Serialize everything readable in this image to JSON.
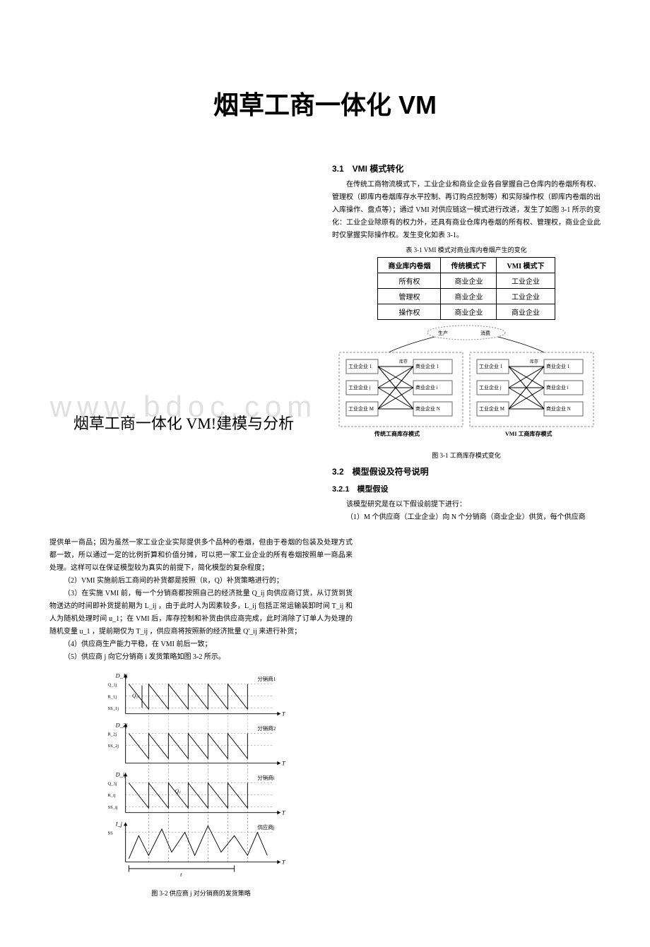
{
  "title_main": "烟草工商一体化 VM",
  "subtitle": "烟草工商一体化 VM!建模与分析",
  "watermark": "www.bdoc.com",
  "watermark_color": "#e0e0e0",
  "colors": {
    "text": "#000000",
    "bg": "#ffffff",
    "border": "#000000",
    "grid": "#444444"
  },
  "section_3_1": {
    "heading": "3.1　VMI 模式转化",
    "para": "在传统工商物流模式下，工业企业和商业企业各自掌握自己仓库内的卷烟所有权、管理权（即库内卷烟库存水平控制、再订购点控制等）和实际操作权（即库内卷烟的出入库操作、盘点等）；通过 VMI 对供应链这一模式进行改进，发生了如图 3-1 所示的变化：工业企业除原有的权力外，还具有商业仓库内卷烟的所有权、管理权，商业企业此时仅掌握实际操作权。发生变化如表 3-1。",
    "table_caption": "表 3-1 VMI 模式对商业库内卷烟产生的变化",
    "table": {
      "columns": [
        "商业库内卷烟",
        "传统模式下",
        "VMI 模式下"
      ],
      "rows": [
        [
          "所有权",
          "商业企业",
          "工业企业"
        ],
        [
          "管理权",
          "商业企业",
          "工业企业"
        ],
        [
          "操作权",
          "商业企业",
          "商业企业"
        ]
      ]
    },
    "fig_caption": "图 3-1 工商库存模式变化",
    "diagram": {
      "left_label": "传统工商库存模式",
      "right_label": "VMI 工商库存模式",
      "top_labels": [
        "生产",
        "消费"
      ],
      "nodes_left": [
        "工业企业 1",
        "工业企业 j",
        "工业企业 M",
        "商业企业 1",
        "商业企业 i",
        "商业企业 N"
      ],
      "nodes_right": [
        "工业企业 1",
        "工业企业 j",
        "工业企业 M",
        "商业企业 1",
        "商业企业 i",
        "商业企业 N"
      ],
      "node_tags": [
        "库存",
        "库存"
      ],
      "box_color": "#888888"
    }
  },
  "section_3_2": {
    "heading": "3.2　模型假设及符号说明",
    "sub_heading": "3.2.1　模型假设",
    "intro": "该模型研究是在以下假设前提下进行：",
    "assumption_1": "（1）M 个供应商（工业企业）向 N 个分销商（商业企业）供货，每个供应商",
    "continuation": [
      "提供单一商品；因为虽然一家工业企业实际提供多个品种的卷烟，但由于卷烟的包装及处理方式都一致，所以通过一定的比例折算和价值分摊，可以把一家工业企业的所有卷烟按照单一商品来处理。这样可以在保证模型较为真实的前提下，简化模型的复杂程度；",
      "（2）VMI 实施前后工商间的补货都是按照（R，Q）补货策略进行的；",
      "（3）在实施 VMI 前，每一个分销商都按照自己的经济批量 Q_ij 向供应商订货，从订货到货物送达的时间即补货提前期为 L_ij ，由于此时人为因素较多，L_ij 包括正常运输装卸时间 T_ij 和人为随机处理时间 u_1；在 VMI 后，库存控制和补货由供应商完成，此时消除了订单人为处理的随机变量 u_1 ，提前期仅为 T_ij ，供应商将按照新的经济批量 Q'_ij 来进行补货；",
      "（4）供应商生产能力平稳，在 VMI 前后一致；",
      "（5）供应商 j 向它分销商 i 发货策略如图 3-2 所示。"
    ],
    "fig32_caption": "图 3-2 供应商 j 对分销商的发货策略",
    "chart": {
      "panels": [
        {
          "ylabel": "D_1j",
          "right_label": "分销商1",
          "marks": [
            "Q_1j",
            "R_1j",
            "SS_1j"
          ]
        },
        {
          "ylabel": "D_2j",
          "right_label": "分销商2",
          "marks": [
            "R_2j",
            "SS_2j"
          ]
        },
        {
          "ylabel": "D_ij",
          "right_label": "分销商i",
          "marks": [
            "Q_3j",
            "R_ij",
            "SS_ij"
          ]
        },
        {
          "ylabel": "I_j",
          "right_label": "供应商j",
          "marks": [
            "SS"
          ]
        }
      ],
      "xlabel": "T",
      "t_span_label": "t",
      "line_color": "#000000",
      "dash_color": "#666666",
      "panel_bg": "#ffffff"
    }
  }
}
